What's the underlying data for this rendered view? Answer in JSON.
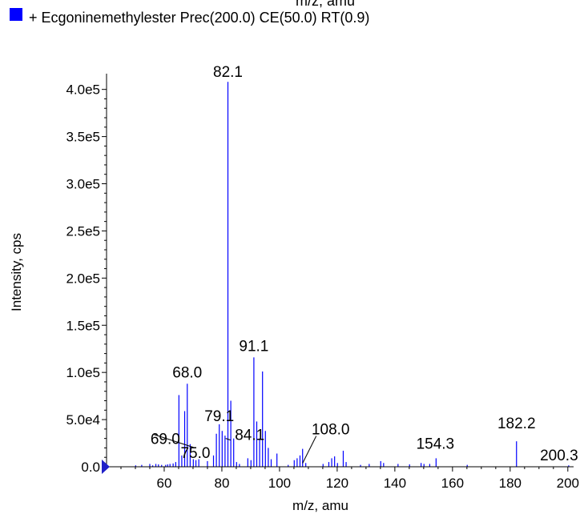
{
  "colors": {
    "series": "#0000ff",
    "axis": "#000000",
    "marker": "#2020c8"
  },
  "header_fragment": "m/z, amu",
  "legend": {
    "label": "+ Ecgoninemethylester Prec(200.0) CE(50.0) RT(0.9)",
    "marker_icon": "blue-square-icon"
  },
  "chart_data": {
    "type": "bar",
    "title": "",
    "xlabel": "m/z, amu",
    "ylabel": "Intensity, cps",
    "xlim": [
      40,
      202
    ],
    "ylim": [
      0,
      415000
    ],
    "xticks": [
      60,
      80,
      100,
      120,
      140,
      160,
      180,
      200
    ],
    "yticks": [
      0,
      50000,
      100000,
      150000,
      200000,
      250000,
      300000,
      350000,
      400000
    ],
    "ytick_labels": [
      "0.0",
      "5.0e4",
      "1.0e5",
      "1.5e5",
      "2.0e5",
      "2.5e5",
      "3.0e5",
      "3.5e5",
      "4.0e5"
    ],
    "series": [
      {
        "x": [
          50.1,
          52.2,
          55.0,
          56.0,
          57.1,
          58.0,
          59.1,
          60.5,
          61.2,
          62.0,
          63.1,
          64.0,
          65.1,
          66.1,
          67.1,
          68.0,
          69.0,
          70.1,
          71.0,
          72.0,
          75.0,
          77.1,
          78.1,
          79.1,
          80.1,
          81.1,
          82.1,
          83.1,
          84.1,
          85.1,
          86.1,
          89.0,
          90.1,
          91.1,
          92.1,
          93.1,
          94.1,
          95.1,
          96.1,
          97.1,
          99.1,
          103.0,
          105.1,
          106.1,
          107.1,
          108.0,
          109.1,
          115.1,
          117.1,
          118.1,
          119.1,
          120.1,
          122.1,
          123.1,
          128.1,
          131.1,
          135.1,
          136.1,
          141.1,
          145.1,
          149.1,
          150.1,
          152.1,
          154.3,
          165.1,
          182.2,
          200.3
        ],
        "values": [
          1500,
          2000,
          3000,
          1500,
          3000,
          2500,
          2000,
          2000,
          2500,
          3000,
          3500,
          5000,
          76000,
          12000,
          59000,
          88000,
          24000,
          8000,
          7000,
          8000,
          6000,
          12000,
          35000,
          45000,
          38000,
          33000,
          408000,
          70000,
          30000,
          5000,
          3000,
          9000,
          7000,
          116000,
          48000,
          30000,
          101000,
          38000,
          20000,
          8000,
          14000,
          2000,
          7000,
          9000,
          12000,
          19000,
          4000,
          3000,
          5000,
          9000,
          11000,
          4000,
          17000,
          5000,
          2000,
          3000,
          6000,
          4000,
          3000,
          2500,
          4000,
          3000,
          3000,
          9000,
          2000,
          27000,
          1500
        ]
      }
    ],
    "peak_labels": [
      {
        "text": "82.1",
        "x": 82.1,
        "y": 408000
      },
      {
        "text": "91.1",
        "x": 91.1,
        "y": 116000
      },
      {
        "text": "68.0",
        "x": 68.0,
        "y": 88000
      },
      {
        "text": "79.1",
        "x": 79.1,
        "y": 45000
      },
      {
        "text": "84.1",
        "x": 84.1,
        "y": 30000
      },
      {
        "text": "69.0",
        "x": 69.0,
        "y": 24000
      },
      {
        "text": "75.0",
        "x": 75.0,
        "y": 6000
      },
      {
        "text": "108.0",
        "x": 108.0,
        "y": 19000
      },
      {
        "text": "154.3",
        "x": 154.3,
        "y": 9000
      },
      {
        "text": "182.2",
        "x": 182.2,
        "y": 27000
      },
      {
        "text": "200.3",
        "x": 200.3,
        "y": 1500
      }
    ]
  }
}
